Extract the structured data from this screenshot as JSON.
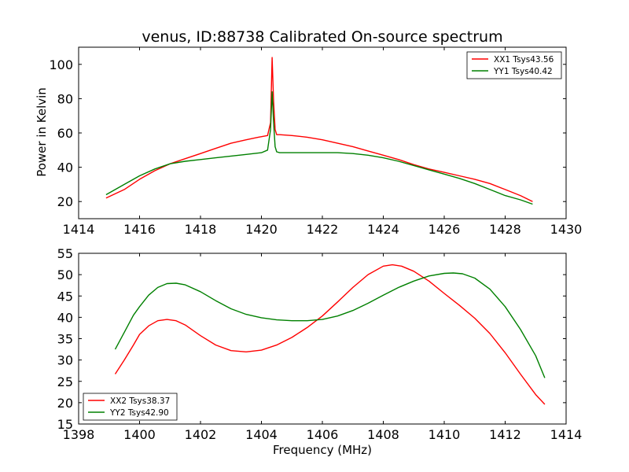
{
  "chart_data": [
    {
      "type": "line",
      "title": "venus, ID:88738 Calibrated On-source spectrum",
      "xlabel": "",
      "ylabel": "Power in Kelvin",
      "xlim": [
        1414,
        1430
      ],
      "ylim": [
        10,
        110
      ],
      "xticks": [
        1414,
        1416,
        1418,
        1420,
        1422,
        1424,
        1426,
        1428,
        1430
      ],
      "yticks": [
        20,
        40,
        60,
        80,
        100
      ],
      "grid": false,
      "legend": "top-right",
      "series": [
        {
          "name": "XX1 Tsys43.56",
          "color": "#ff0000",
          "x": [
            1414.9,
            1415.5,
            1416.0,
            1416.5,
            1417.0,
            1417.5,
            1418.0,
            1418.5,
            1419.0,
            1419.5,
            1419.9,
            1420.2,
            1420.3,
            1420.35,
            1420.4,
            1420.45,
            1420.5,
            1420.6,
            1421.0,
            1421.5,
            1422.0,
            1422.5,
            1423.0,
            1423.5,
            1424.0,
            1424.5,
            1425.0,
            1425.5,
            1426.0,
            1426.5,
            1427.0,
            1427.5,
            1428.0,
            1428.5,
            1428.9
          ],
          "y": [
            22,
            27,
            33,
            38,
            42,
            45,
            48,
            51,
            54,
            56,
            57.5,
            58.5,
            66,
            104,
            78,
            62,
            59,
            59,
            58.5,
            57.5,
            56,
            54,
            52,
            49.5,
            47,
            44.5,
            41.5,
            39,
            37,
            35,
            33,
            30.5,
            27,
            23.5,
            20
          ]
        },
        {
          "name": "YY1 Tsys40.42",
          "color": "#008000",
          "x": [
            1414.9,
            1415.5,
            1416.0,
            1416.5,
            1417.0,
            1417.5,
            1418.0,
            1418.5,
            1419.0,
            1419.5,
            1420.0,
            1420.2,
            1420.3,
            1420.35,
            1420.4,
            1420.45,
            1420.5,
            1420.6,
            1421.0,
            1421.5,
            1422.0,
            1422.5,
            1423.0,
            1423.5,
            1424.0,
            1424.5,
            1425.0,
            1425.5,
            1426.0,
            1426.5,
            1427.0,
            1427.5,
            1428.0,
            1428.5,
            1428.9
          ],
          "y": [
            24,
            30,
            35,
            39,
            42,
            43.5,
            44.5,
            45.5,
            46.5,
            47.5,
            48.5,
            50,
            62,
            84,
            66,
            52,
            49,
            48.5,
            48.5,
            48.5,
            48.5,
            48.5,
            48,
            47,
            45.5,
            43.5,
            41,
            38.5,
            36,
            33.5,
            30.5,
            27,
            23.5,
            21,
            18.5
          ]
        }
      ]
    },
    {
      "type": "line",
      "title": "",
      "xlabel": "Frequency (MHz)",
      "ylabel": "",
      "xlim": [
        1398,
        1414
      ],
      "ylim": [
        15,
        55
      ],
      "xticks": [
        1398,
        1400,
        1402,
        1404,
        1406,
        1408,
        1410,
        1412,
        1414
      ],
      "yticks": [
        15,
        20,
        25,
        30,
        35,
        40,
        45,
        50,
        55
      ],
      "grid": false,
      "legend": "bottom-left",
      "series": [
        {
          "name": "XX2 Tsys38.37",
          "color": "#ff0000",
          "x": [
            1399.2,
            1399.5,
            1399.8,
            1400.0,
            1400.3,
            1400.6,
            1400.9,
            1401.2,
            1401.5,
            1402.0,
            1402.5,
            1403.0,
            1403.5,
            1404.0,
            1404.5,
            1405.0,
            1405.5,
            1406.0,
            1406.5,
            1407.0,
            1407.5,
            1408.0,
            1408.3,
            1408.6,
            1409.0,
            1409.5,
            1410.0,
            1410.5,
            1411.0,
            1411.5,
            1412.0,
            1412.5,
            1413.0,
            1413.3
          ],
          "y": [
            26.7,
            30,
            33.5,
            36,
            38,
            39.2,
            39.5,
            39.2,
            38.2,
            35.7,
            33.5,
            32.2,
            31.9,
            32.3,
            33.5,
            35.3,
            37.6,
            40.3,
            43.6,
            47,
            50,
            52,
            52.3,
            52,
            50.8,
            48.5,
            45.6,
            42.8,
            39.8,
            36.2,
            31.7,
            26.7,
            21.9,
            19.6
          ]
        },
        {
          "name": "YY2 Tsys42.90",
          "color": "#008000",
          "x": [
            1399.2,
            1399.5,
            1399.8,
            1400.0,
            1400.3,
            1400.6,
            1400.9,
            1401.2,
            1401.5,
            1402.0,
            1402.5,
            1403.0,
            1403.5,
            1404.0,
            1404.5,
            1405.0,
            1405.5,
            1406.0,
            1406.5,
            1407.0,
            1407.5,
            1408.0,
            1408.5,
            1409.0,
            1409.5,
            1410.0,
            1410.3,
            1410.6,
            1411.0,
            1411.5,
            1412.0,
            1412.5,
            1413.0,
            1413.3
          ],
          "y": [
            32.5,
            36.5,
            40.5,
            42.5,
            45.2,
            47,
            47.9,
            48,
            47.6,
            46,
            43.9,
            42,
            40.7,
            39.9,
            39.4,
            39.2,
            39.2,
            39.5,
            40.3,
            41.6,
            43.3,
            45.2,
            47,
            48.5,
            49.7,
            50.3,
            50.4,
            50.2,
            49.2,
            46.6,
            42.5,
            37.2,
            31,
            25.8
          ]
        }
      ]
    }
  ]
}
